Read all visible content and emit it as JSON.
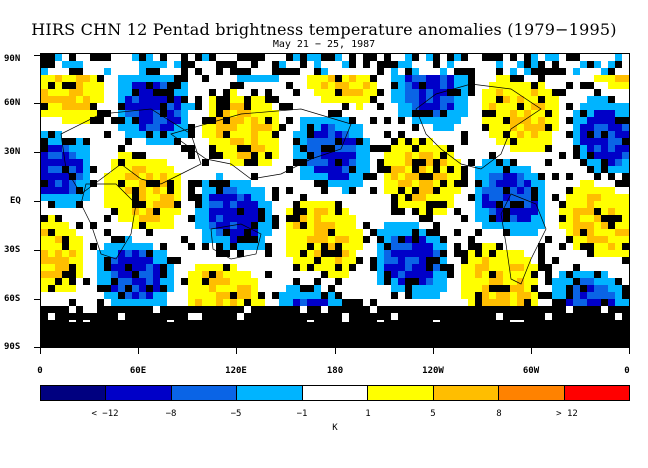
{
  "title": "HIRS CHN 12 Pentad brightness temperature anomalies (1979−1995)",
  "subtitle": "May 21 − 25, 1987",
  "latitude_labels": [
    "90N",
    "60N",
    "30N",
    "EQ",
    "30S",
    "60S",
    "90S"
  ],
  "longitude_labels": [
    "0",
    "60E",
    "120E",
    "180",
    "120W",
    "60W",
    "0"
  ],
  "colorbar": {
    "colors": [
      "#000080",
      "#0000c8",
      "#0a64e6",
      "#00b4ff",
      "#ffffff",
      "#ffff00",
      "#ffbe00",
      "#ff8200",
      "#ff0000"
    ],
    "labels": [
      "< −12",
      "−8",
      "−5",
      "−1",
      "1",
      "5",
      "8",
      "> 12"
    ],
    "unit": "K"
  },
  "map": {
    "missing_color": "#000000",
    "land_outline_color": "#000000"
  }
}
